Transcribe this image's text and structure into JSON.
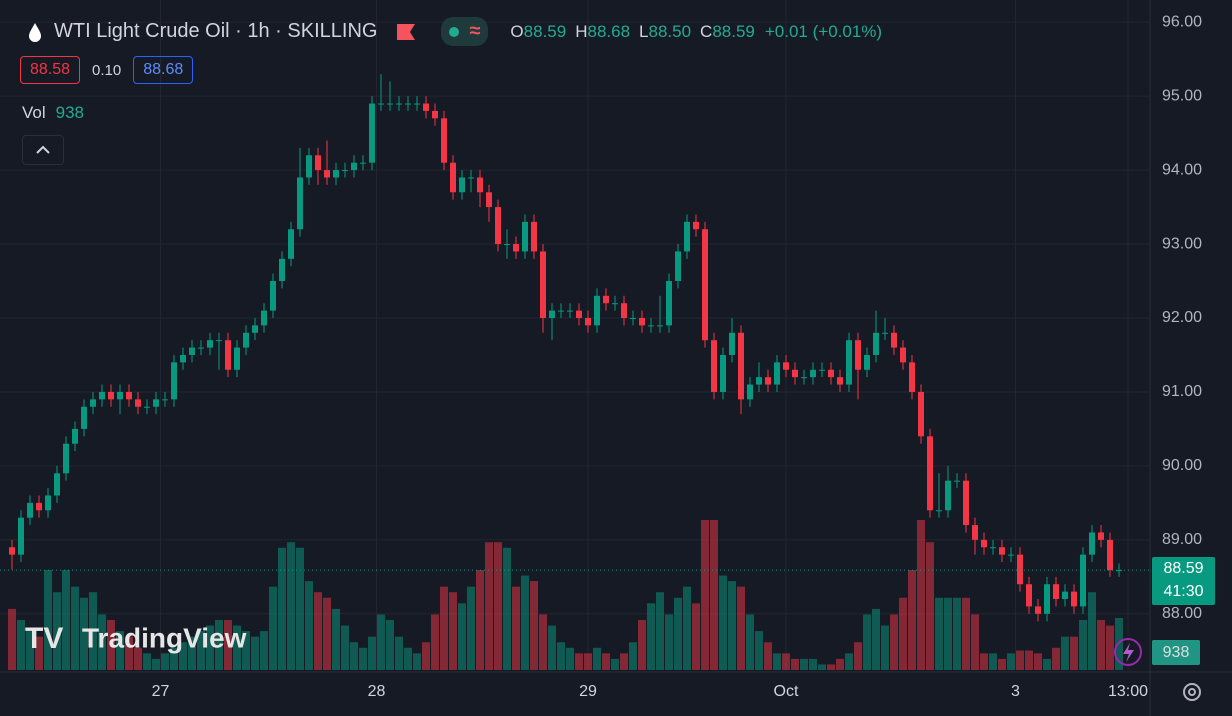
{
  "chart_data": {
    "type": "candlestick",
    "header": {
      "symbol": "WTI Light Crude Oil · 1h · SKILLING",
      "ohlc_letters": [
        "O",
        "H",
        "L",
        "C"
      ],
      "open": "88.59",
      "high": "88.68",
      "low": "88.50",
      "close": "88.59",
      "change": "+0.01 (+0.01%)",
      "bid": "88.58",
      "spread": "0.10",
      "ask": "88.68",
      "volume_label": "Vol"
    },
    "brand": "TradingView",
    "countdown": "41:30",
    "up_color": "#089981",
    "down_color": "#f23645",
    "grid": true,
    "ylim": [
      87.24,
      96.3
    ],
    "yticks": [
      {
        "value": 88,
        "label": "88.00"
      },
      {
        "value": 89,
        "label": "89.00"
      },
      {
        "value": 90,
        "label": "90.00"
      },
      {
        "value": 91,
        "label": "91.00"
      },
      {
        "value": 92,
        "label": "92.00"
      },
      {
        "value": 93,
        "label": "93.00"
      },
      {
        "value": 94,
        "label": "94.00"
      },
      {
        "value": 95,
        "label": "95.00"
      },
      {
        "value": 96,
        "label": "96.00"
      }
    ],
    "volume_lim": [
      0,
      2700
    ],
    "xticks": [
      {
        "value": 16.5,
        "label": "27"
      },
      {
        "value": 40.5,
        "label": "28"
      },
      {
        "value": 64,
        "label": "29"
      },
      {
        "value": 86,
        "label": "Oct"
      },
      {
        "value": 111.5,
        "label": "3"
      },
      {
        "value": 124,
        "label": "13:00"
      }
    ],
    "open": [
      88.9,
      88.8,
      89.3,
      89.5,
      89.4,
      89.6,
      89.9,
      90.3,
      90.5,
      90.8,
      90.9,
      91.0,
      90.9,
      91.0,
      90.9,
      90.8,
      90.8,
      90.9,
      90.9,
      91.4,
      91.5,
      91.6,
      91.6,
      91.7,
      91.7,
      91.3,
      91.6,
      91.8,
      91.9,
      92.1,
      92.5,
      92.8,
      93.2,
      93.9,
      94.2,
      94.0,
      93.9,
      94.0,
      94.0,
      94.1,
      94.1,
      94.9,
      94.9,
      94.9,
      94.9,
      94.9,
      94.9,
      94.8,
      94.7,
      94.1,
      93.7,
      93.9,
      93.9,
      93.7,
      93.5,
      93.0,
      93.0,
      92.9,
      93.3,
      92.9,
      92.0,
      92.1,
      92.1,
      92.1,
      92.0,
      91.9,
      92.3,
      92.2,
      92.2,
      92.0,
      92.0,
      91.9,
      91.9,
      91.9,
      92.5,
      92.9,
      93.3,
      93.2,
      91.7,
      91.0,
      91.5,
      91.8,
      90.9,
      91.1,
      91.2,
      91.1,
      91.4,
      91.3,
      91.2,
      91.2,
      91.3,
      91.3,
      91.2,
      91.1,
      91.7,
      91.3,
      91.5,
      91.8,
      91.8,
      91.6,
      91.4,
      91.0,
      90.4,
      89.4,
      89.4,
      89.8,
      89.8,
      89.2,
      89.0,
      88.9,
      88.9,
      88.8,
      88.8,
      88.4,
      88.1,
      88.0,
      88.4,
      88.2,
      88.3,
      88.1,
      88.8,
      89.1,
      89.0,
      88.59
    ],
    "high": [
      89.0,
      89.4,
      89.6,
      89.6,
      89.7,
      90.0,
      90.4,
      90.6,
      90.9,
      91.0,
      91.1,
      91.1,
      91.1,
      91.1,
      91.0,
      90.9,
      91.0,
      91.0,
      91.5,
      91.6,
      91.7,
      91.7,
      91.8,
      91.8,
      91.8,
      91.7,
      91.9,
      92.0,
      92.2,
      92.6,
      92.9,
      93.3,
      94.3,
      94.3,
      94.3,
      94.4,
      94.1,
      94.1,
      94.2,
      94.2,
      95.0,
      95.3,
      95.2,
      95.0,
      95.0,
      95.0,
      95.0,
      94.9,
      94.8,
      94.2,
      94.0,
      94.0,
      94.0,
      93.8,
      93.6,
      93.2,
      93.1,
      93.4,
      93.4,
      93.0,
      92.2,
      92.2,
      92.2,
      92.2,
      92.1,
      92.4,
      92.4,
      92.3,
      92.3,
      92.1,
      92.1,
      92.0,
      92.3,
      92.6,
      93.0,
      93.4,
      93.4,
      93.3,
      91.8,
      91.6,
      92.0,
      91.9,
      91.2,
      91.4,
      91.3,
      91.5,
      91.5,
      91.4,
      91.3,
      91.4,
      91.4,
      91.4,
      91.3,
      91.8,
      91.8,
      91.6,
      92.1,
      92.0,
      91.9,
      91.7,
      91.5,
      91.1,
      90.5,
      89.9,
      90.0,
      89.9,
      89.9,
      89.3,
      89.1,
      89.0,
      89.0,
      88.9,
      88.9,
      88.5,
      88.2,
      88.5,
      88.5,
      88.4,
      88.4,
      88.9,
      89.2,
      89.2,
      89.1,
      88.68
    ],
    "low": [
      88.6,
      88.7,
      89.2,
      89.3,
      89.3,
      89.5,
      89.8,
      90.2,
      90.4,
      90.7,
      90.8,
      90.8,
      90.7,
      90.8,
      90.7,
      90.7,
      90.7,
      90.8,
      90.8,
      91.3,
      91.4,
      91.5,
      91.5,
      91.3,
      91.2,
      91.2,
      91.5,
      91.7,
      91.8,
      92.0,
      92.4,
      92.7,
      93.1,
      93.8,
      93.8,
      93.8,
      93.8,
      93.9,
      93.9,
      94.0,
      94.0,
      94.8,
      94.8,
      94.8,
      94.8,
      94.8,
      94.7,
      94.6,
      94.0,
      93.6,
      93.6,
      93.7,
      93.5,
      93.3,
      92.9,
      92.8,
      92.8,
      92.8,
      92.8,
      91.8,
      91.7,
      92.0,
      92.0,
      91.9,
      91.8,
      91.8,
      92.1,
      92.1,
      91.9,
      91.9,
      91.8,
      91.8,
      91.8,
      91.8,
      92.4,
      92.8,
      93.1,
      91.6,
      90.9,
      90.9,
      91.4,
      90.7,
      90.8,
      91.0,
      91.0,
      91.0,
      91.2,
      91.1,
      91.1,
      91.1,
      91.2,
      91.1,
      91.0,
      91.0,
      90.9,
      91.2,
      91.4,
      91.7,
      91.5,
      91.3,
      90.9,
      90.3,
      89.3,
      89.3,
      89.3,
      89.7,
      89.1,
      88.8,
      88.8,
      88.8,
      88.7,
      88.7,
      88.3,
      88.0,
      87.9,
      87.9,
      88.1,
      88.1,
      88.0,
      88.0,
      88.7,
      88.9,
      88.5,
      88.5
    ],
    "close": [
      88.8,
      89.3,
      89.5,
      89.4,
      89.6,
      89.9,
      90.3,
      90.5,
      90.8,
      90.9,
      91.0,
      90.9,
      91.0,
      90.9,
      90.8,
      90.8,
      90.9,
      90.9,
      91.4,
      91.5,
      91.6,
      91.6,
      91.7,
      91.7,
      91.3,
      91.6,
      91.8,
      91.9,
      92.1,
      92.5,
      92.8,
      93.2,
      93.9,
      94.2,
      94.0,
      93.9,
      94.0,
      94.0,
      94.1,
      94.1,
      94.9,
      94.9,
      94.9,
      94.9,
      94.9,
      94.9,
      94.8,
      94.7,
      94.1,
      93.7,
      93.9,
      93.9,
      93.7,
      93.5,
      93.0,
      93.0,
      92.9,
      93.3,
      92.9,
      92.0,
      92.1,
      92.1,
      92.1,
      92.0,
      91.9,
      92.3,
      92.2,
      92.2,
      92.0,
      92.0,
      91.9,
      91.9,
      91.9,
      92.5,
      92.9,
      93.3,
      93.2,
      91.7,
      91.0,
      91.5,
      91.8,
      90.9,
      91.1,
      91.2,
      91.1,
      91.4,
      91.3,
      91.2,
      91.2,
      91.3,
      91.3,
      91.2,
      91.1,
      91.7,
      91.3,
      91.5,
      91.8,
      91.8,
      91.6,
      91.4,
      91.0,
      90.4,
      89.4,
      89.4,
      89.8,
      89.8,
      89.2,
      89.0,
      88.9,
      88.9,
      88.8,
      88.8,
      88.4,
      88.1,
      88.0,
      88.4,
      88.2,
      88.3,
      88.1,
      88.8,
      89.1,
      89.0,
      88.59,
      88.59
    ],
    "volume": [
      1100,
      900,
      700,
      600,
      1800,
      1400,
      1800,
      1500,
      1300,
      1400,
      1000,
      900,
      700,
      600,
      400,
      300,
      200,
      300,
      400,
      500,
      600,
      700,
      800,
      900,
      900,
      800,
      700,
      600,
      700,
      1500,
      2200,
      2300,
      2200,
      1600,
      1400,
      1300,
      1100,
      800,
      500,
      400,
      600,
      1000,
      900,
      600,
      400,
      300,
      500,
      1000,
      1500,
      1400,
      1200,
      1500,
      1800,
      2300,
      2300,
      2200,
      1500,
      1700,
      1600,
      1000,
      800,
      500,
      400,
      300,
      300,
      400,
      300,
      200,
      300,
      500,
      900,
      1200,
      1400,
      1000,
      1300,
      1500,
      1200,
      2700,
      2700,
      1700,
      1600,
      1500,
      1000,
      700,
      500,
      300,
      300,
      200,
      200,
      200,
      100,
      100,
      200,
      300,
      500,
      1000,
      1100,
      800,
      1000,
      1300,
      1800,
      2700,
      2300,
      1300,
      1300,
      1300,
      1300,
      1000,
      300,
      300,
      200,
      300,
      350,
      350,
      300,
      200,
      400,
      600,
      600,
      900,
      1400,
      900,
      800,
      938
    ]
  }
}
